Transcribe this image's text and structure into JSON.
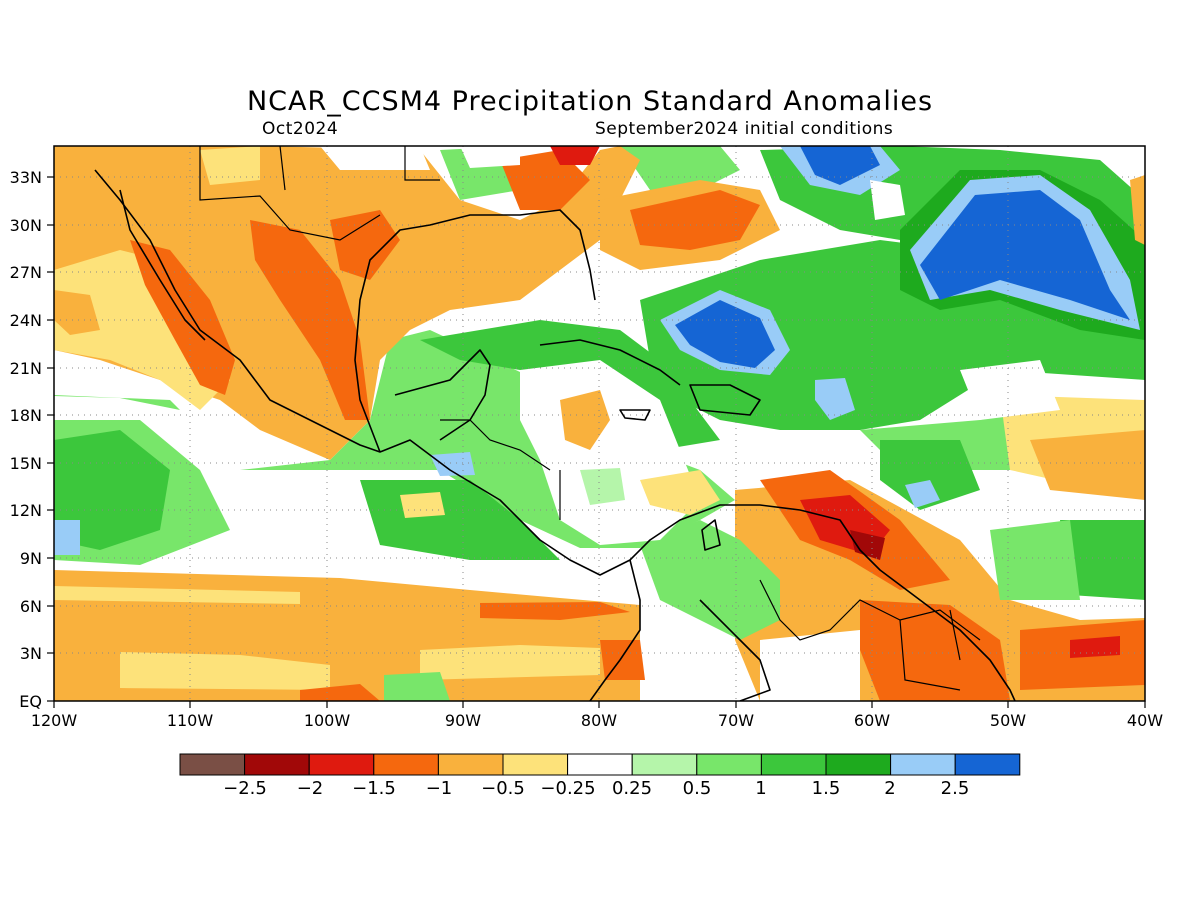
{
  "header": {
    "title": "NCAR_CCSM4 Precipitation Standard Anomalies",
    "subtitle_left": "Oct2024",
    "subtitle_right": "September2024 initial conditions"
  },
  "map": {
    "lon_range": [
      -120,
      -40
    ],
    "lat_range": [
      0,
      35
    ],
    "grid_lines": "dotted",
    "x_ticks": [
      "120W",
      "110W",
      "100W",
      "90W",
      "80W",
      "70W",
      "60W",
      "50W",
      "40W"
    ],
    "y_ticks": [
      "EQ",
      "3N",
      "6N",
      "9N",
      "12N",
      "15N",
      "18N",
      "21N",
      "24N",
      "27N",
      "30N",
      "33N"
    ]
  },
  "colorbar": {
    "labels": [
      "−2.5",
      "−2",
      "−1.5",
      "−1",
      "−0.5",
      "−0.25",
      "0.25",
      "0.5",
      "1",
      "1.5",
      "2",
      "2.5"
    ],
    "colors": [
      "#7a4f45",
      "#a10808",
      "#df1a0f",
      "#f5680e",
      "#f9b13d",
      "#fde27a",
      "#ffffff",
      "#b5f5aa",
      "#78e66a",
      "#3cc73c",
      "#1eaa1e",
      "#99ccf7",
      "#1565d4"
    ]
  },
  "colors": {
    "dry_strong": "#df1a0f",
    "dry": "#f5680e",
    "dry_light": "#f9b13d",
    "dry_faint": "#fde27a",
    "wet_faint": "#b5f5aa",
    "wet": "#78e66a",
    "wet_strong": "#3cc73c",
    "wet_stronger": "#1eaa1e",
    "wet_very_light": "#99ccf7",
    "wet_extreme": "#1565d4"
  }
}
